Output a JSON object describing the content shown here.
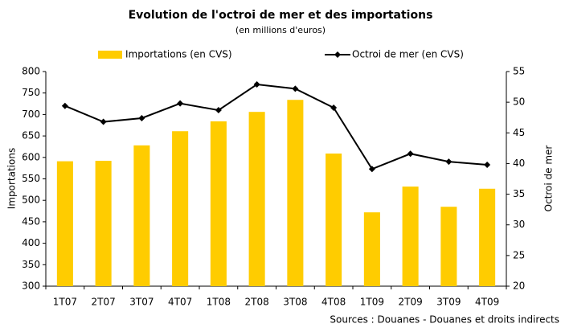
{
  "chart_data": {
    "type": "bar-line",
    "title": "Evolution de l'octroi de mer et des importations",
    "subtitle": "(en millions d'euros)",
    "y_label": "Importations",
    "y2_label": "Octroi de mer",
    "source": "Sources : Douanes -  Douanes et droits indirects",
    "categories": [
      "1T07",
      "2T07",
      "3T07",
      "4T07",
      "1T08",
      "2T08",
      "3T08",
      "4T08",
      "1T09",
      "2T09",
      "3T09",
      "4T09"
    ],
    "series": [
      {
        "name": "Importations (en CVS)",
        "color": "#ffcc00",
        "kind": "bar",
        "values": [
          591,
          592,
          628,
          661,
          684,
          706,
          734,
          609,
          472,
          532,
          485,
          527
        ]
      },
      {
        "name": "Octroi de mer (en CVS)",
        "color": "#000000",
        "kind": "line",
        "axis": "y2",
        "values": [
          49.4,
          46.8,
          47.4,
          49.8,
          48.7,
          52.9,
          52.2,
          49.1,
          39.1,
          41.6,
          40.3,
          39.8
        ]
      }
    ],
    "ylim": [
      300,
      800
    ],
    "yticks": [
      300,
      350,
      400,
      450,
      500,
      550,
      600,
      650,
      700,
      750,
      800
    ],
    "y2lim": [
      20,
      55
    ],
    "y2ticks": [
      20,
      25,
      30,
      35,
      40,
      45,
      50,
      55
    ]
  }
}
